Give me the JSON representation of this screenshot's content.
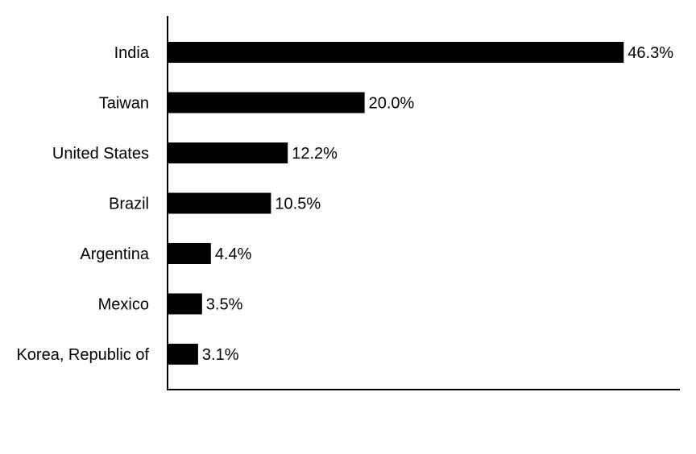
{
  "chart_data": {
    "type": "bar",
    "orientation": "horizontal",
    "categories": [
      "India",
      "Taiwan",
      "United States",
      "Brazil",
      "Argentina",
      "Mexico",
      "Korea, Republic of"
    ],
    "values": [
      46.3,
      20.0,
      12.2,
      10.5,
      4.4,
      3.5,
      3.1
    ],
    "value_labels": [
      "46.3%",
      "20.0%",
      "12.2%",
      "10.5%",
      "4.4%",
      "3.5%",
      "3.1%"
    ],
    "xlim": [
      0,
      52
    ],
    "unit": "%",
    "grid": false,
    "legend": "none",
    "bar_color": "#000000",
    "axis_color": "#000000"
  }
}
